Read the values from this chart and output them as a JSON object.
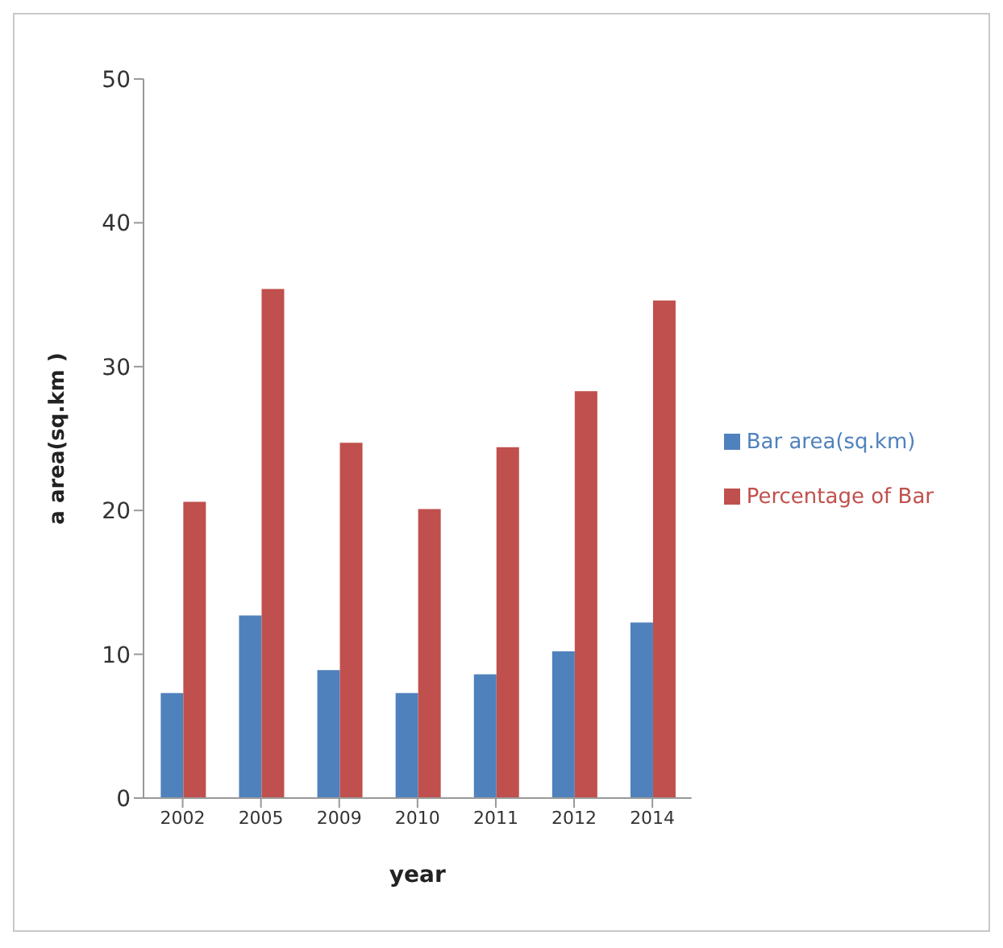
{
  "chart_data": {
    "type": "bar",
    "xlabel": "year",
    "ylabel": "a area(sq.km )",
    "categories": [
      "2002",
      "2005",
      "2009",
      "2010",
      "2011",
      "2012",
      "2014"
    ],
    "series": [
      {
        "name": "Bar area(sq.km)",
        "color": "#4f81bd",
        "values": [
          7.3,
          12.7,
          8.9,
          7.3,
          8.6,
          10.2,
          12.2
        ]
      },
      {
        "name": "Percentage of Bar",
        "color": "#c0504d",
        "values": [
          20.6,
          35.4,
          24.7,
          20.1,
          24.4,
          28.3,
          34.6
        ]
      }
    ],
    "ylim": [
      0,
      50
    ],
    "yticks": [
      0,
      10,
      20,
      30,
      40,
      50
    ],
    "grid": false,
    "legend": "right"
  }
}
